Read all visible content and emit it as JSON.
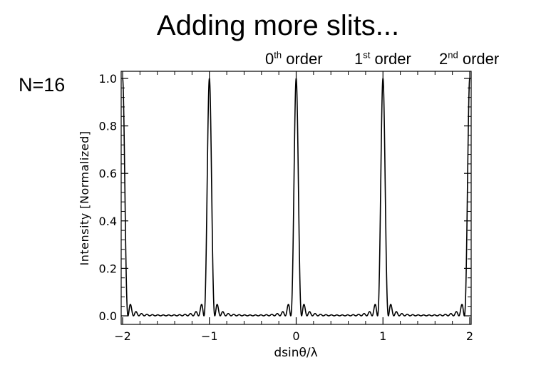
{
  "header": {
    "title": "Adding more slits..."
  },
  "note": "N=16",
  "orders": [
    {
      "num": "0",
      "sup": "th",
      "word": " order"
    },
    {
      "num": "1",
      "sup": "st",
      "word": " order"
    },
    {
      "num": "2",
      "sup": "nd",
      "word": " order"
    }
  ],
  "chart_data": {
    "type": "line",
    "xlabel": "dsinθ/λ",
    "ylabel": "Intensity [Normalized]",
    "xlim": [
      -2,
      2
    ],
    "ylim": [
      0,
      1
    ],
    "x_ticks": [
      -2,
      -1,
      0,
      1,
      2
    ],
    "x_tick_labels": [
      "−2",
      "−1",
      "0",
      "1",
      "2"
    ],
    "y_ticks": [
      0,
      0.2,
      0.4,
      0.6,
      0.8,
      1.0
    ],
    "y_tick_labels": [
      "0.0",
      "0.2",
      "0.4",
      "0.6",
      "0.8",
      "1.0"
    ],
    "grid": false,
    "legend": "none",
    "slits": 16,
    "series": [
      {
        "function": "sin^2(N*pi*x) / (N^2 * sin^2(pi*x))",
        "line_color": "#000000"
      }
    ],
    "principal_maxima": [
      {
        "x": -1,
        "y": 1.0
      },
      {
        "x": 0,
        "y": 1.0
      },
      {
        "x": 1,
        "y": 1.0
      }
    ]
  }
}
